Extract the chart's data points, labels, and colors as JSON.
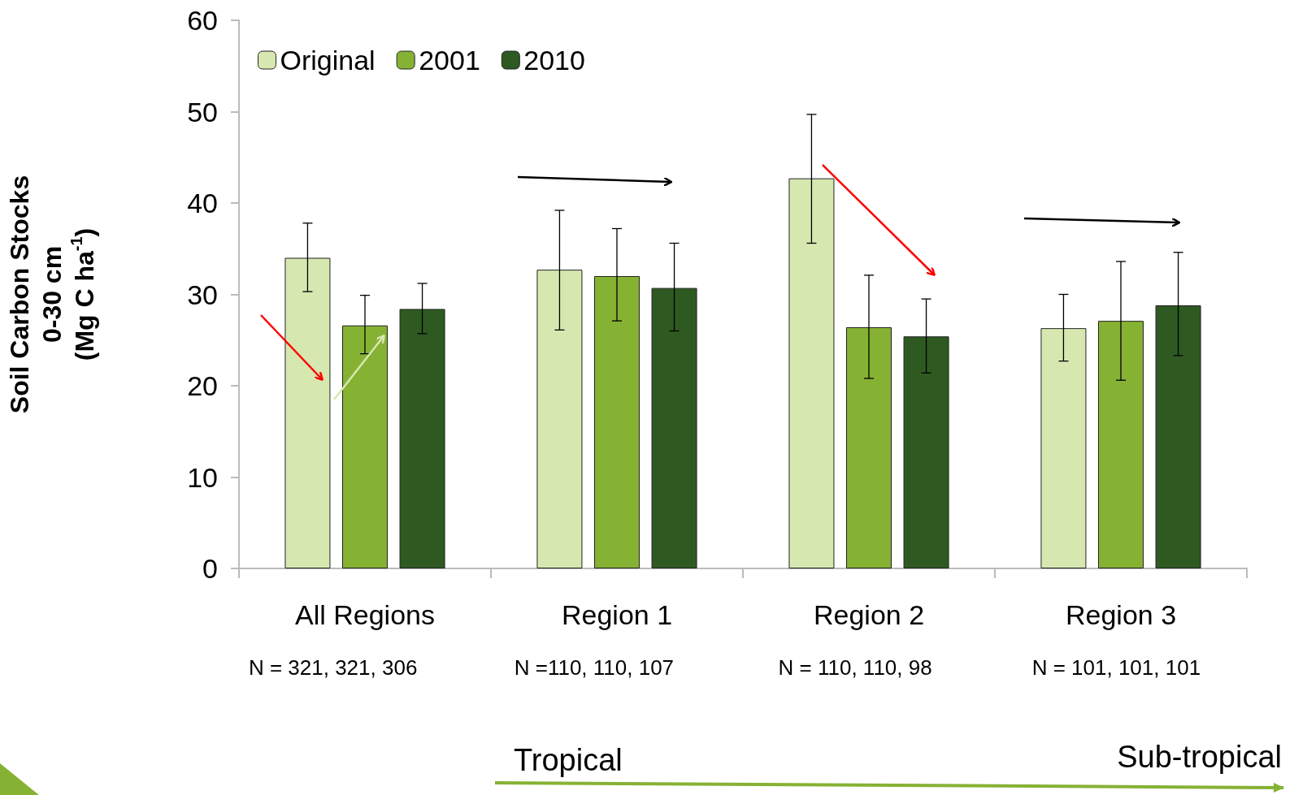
{
  "chart_data": {
    "type": "bar",
    "ylabel": "Soil Carbon Stocks\n0-30 cm\n(Mg C ha$^{-1}$)",
    "categories": [
      "All Regions",
      "Region 1",
      "Region 2",
      "Region 3"
    ],
    "series": [
      {
        "name": "Original",
        "color": "#d6e8b0",
        "values": [
          34.0,
          32.7,
          42.7,
          26.3
        ],
        "errors": [
          [
            30.3,
            37.8
          ],
          [
            26.1,
            39.2
          ],
          [
            35.6,
            49.7
          ],
          [
            22.7,
            30.0
          ]
        ]
      },
      {
        "name": "2001",
        "color": "#86b234",
        "values": [
          26.6,
          32.0,
          26.4,
          27.1
        ],
        "errors": [
          [
            23.5,
            29.9
          ],
          [
            27.1,
            37.2
          ],
          [
            20.8,
            32.1
          ],
          [
            20.6,
            33.6
          ]
        ]
      },
      {
        "name": "2010",
        "color": "#2e5a22",
        "values": [
          28.4,
          30.7,
          25.4,
          28.8
        ],
        "errors": [
          [
            25.7,
            31.2
          ],
          [
            26.0,
            35.6
          ],
          [
            21.4,
            29.5
          ],
          [
            23.3,
            34.6
          ]
        ]
      }
    ],
    "ylim": [
      0,
      60
    ],
    "yticks": [
      0,
      10,
      20,
      30,
      40,
      50,
      60
    ],
    "grid": false,
    "legend": "top left",
    "annotations": [
      "N = 321, 321, 306",
      "N =110, 110, 107",
      "N = 110, 110, 98",
      "N = 101, 101, 101",
      "Tropical",
      "Sub-tropical"
    ]
  }
}
